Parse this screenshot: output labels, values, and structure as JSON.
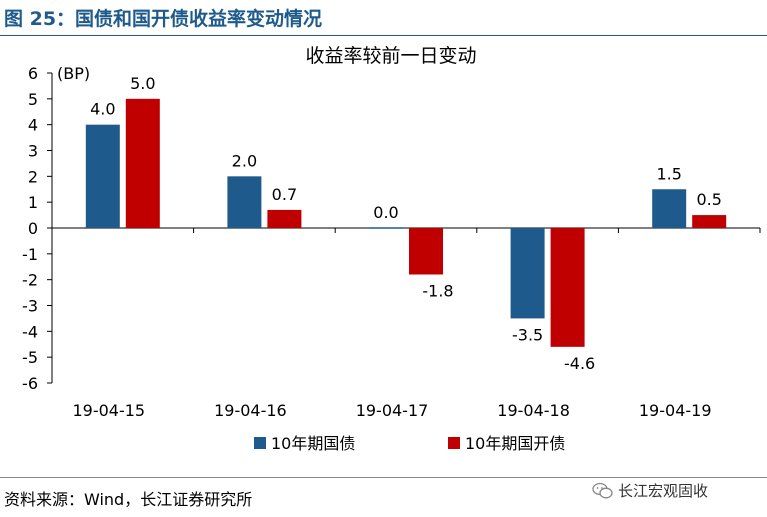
{
  "figure_title": "图 25：国债和国开债收益率变动情况",
  "source_note": "资料来源：Wind，长江证券研究所",
  "watermark_text": "长江宏观固收",
  "colors": {
    "series1": "#1f5a8c",
    "series2": "#c00000",
    "title": "#1f5a8c"
  },
  "chart_data": {
    "type": "bar",
    "title": "收益率较前一日变动",
    "unit_label": "(BP)",
    "categories": [
      "19-04-15",
      "19-04-16",
      "19-04-17",
      "19-04-18",
      "19-04-19"
    ],
    "series": [
      {
        "name": "10年期国债",
        "values": [
          4.0,
          2.0,
          0.0,
          -3.5,
          1.5
        ],
        "labels": [
          "4.0",
          "2.0",
          "0.0",
          "-3.5",
          "1.5"
        ]
      },
      {
        "name": "10年期国开债",
        "values": [
          5.0,
          0.7,
          -1.8,
          -4.6,
          0.5
        ],
        "labels": [
          "5.0",
          "0.7",
          "-1.8",
          "-4.6",
          "0.5"
        ]
      }
    ],
    "ylim": [
      -6,
      6
    ],
    "yticks": [
      "6",
      "5",
      "4",
      "3",
      "2",
      "1",
      "0",
      "-1",
      "-2",
      "-3",
      "-4",
      "-5",
      "-6"
    ],
    "legend_position": "bottom",
    "grid": false
  }
}
